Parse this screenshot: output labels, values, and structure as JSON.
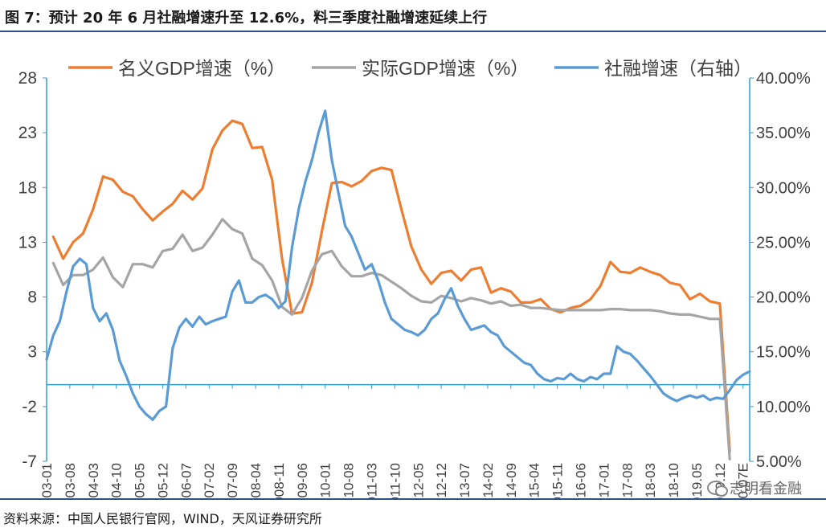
{
  "header": {
    "title": "图 7：预计 20 年 6 月社融增速升至 12.6%，料三季度社融增速延续上行"
  },
  "footer": {
    "source": "资料来源：中国人民银行官网，WIND，天风证券研究所"
  },
  "watermark": {
    "text": "志明看金融"
  },
  "colors": {
    "nominal": "#ed7d31",
    "real": "#a5a5a5",
    "tsf": "#5b9bd5",
    "axis_right": "#2e9fd6",
    "frame": "#2f4f8f"
  },
  "chart_data": {
    "type": "line",
    "xlabel": "",
    "ylabel": "",
    "x_ticks": [
      "2003-01",
      "2003-08",
      "2004-03",
      "2004-10",
      "2005-05",
      "2005-12",
      "2006-07",
      "2007-02",
      "2007-09",
      "2008-04",
      "2008-11",
      "2009-06",
      "2010-01",
      "2010-08",
      "2011-03",
      "2011-10",
      "2012-05",
      "2012-12",
      "2013-07",
      "2014-02",
      "2014-09",
      "2015-04",
      "2015-11",
      "2016-06",
      "2017-01",
      "2017-08",
      "2018-03",
      "2018-10",
      "2019.05",
      "2019.12",
      "2020.07E"
    ],
    "x_range": [
      "2003-01",
      "2020-09"
    ],
    "ylim_left": [
      -7,
      28
    ],
    "yticks_left": [
      28,
      23,
      18,
      13,
      8,
      3,
      -2,
      -7
    ],
    "ylim_right": [
      0.05,
      0.4
    ],
    "yticks_right": [
      "40.00%",
      "35.00%",
      "30.00%",
      "25.00%",
      "20.00%",
      "15.00%",
      "10.00%",
      "5.00%"
    ],
    "grid": false,
    "legend_position": "top",
    "series": [
      {
        "name": "名义GDP增速（%）",
        "axis": "left",
        "x": [
          "2003-03",
          "2003-06",
          "2003-09",
          "2003-12",
          "2004-03",
          "2004-06",
          "2004-09",
          "2004-12",
          "2005-03",
          "2005-06",
          "2005-09",
          "2005-12",
          "2006-03",
          "2006-06",
          "2006-09",
          "2006-12",
          "2007-03",
          "2007-06",
          "2007-09",
          "2007-12",
          "2008-03",
          "2008-06",
          "2008-09",
          "2008-12",
          "2009-03",
          "2009-06",
          "2009-09",
          "2009-12",
          "2010-03",
          "2010-06",
          "2010-09",
          "2010-12",
          "2011-03",
          "2011-06",
          "2011-09",
          "2011-12",
          "2012-03",
          "2012-06",
          "2012-09",
          "2012-12",
          "2013-03",
          "2013-06",
          "2013-09",
          "2013-12",
          "2014-03",
          "2014-06",
          "2014-09",
          "2014-12",
          "2015-03",
          "2015-06",
          "2015-09",
          "2015-12",
          "2016-03",
          "2016-06",
          "2016-09",
          "2016-12",
          "2017-03",
          "2017-06",
          "2017-09",
          "2017-12",
          "2018-03",
          "2018-06",
          "2018-09",
          "2018-12",
          "2019-03",
          "2019-06",
          "2019-09",
          "2019-12",
          "2020-03"
        ],
        "values": [
          13.5,
          11.5,
          13,
          13.8,
          16,
          19,
          18.7,
          17.6,
          17.2,
          16,
          15,
          15.8,
          16.5,
          17.7,
          16.9,
          17.9,
          21.5,
          23.2,
          24.1,
          23.8,
          21.6,
          21.7,
          18.7,
          11.5,
          6.5,
          6.6,
          9.3,
          14,
          18.4,
          18.5,
          18.1,
          18.6,
          19.5,
          19.8,
          19.6,
          16,
          12.6,
          10.5,
          9.2,
          10.2,
          10.4,
          9.5,
          10.5,
          10.7,
          8.4,
          8.8,
          8.5,
          7.5,
          7.5,
          7.8,
          6.9,
          6.6,
          7.0,
          7.2,
          7.8,
          9.0,
          11.2,
          10.3,
          10.2,
          10.7,
          10.3,
          10.0,
          9.3,
          9.1,
          7.8,
          8.3,
          7.6,
          7.4,
          -6.1
        ]
      },
      {
        "name": "实际GDP增速（%）",
        "axis": "left",
        "x": [
          "2003-03",
          "2003-06",
          "2003-09",
          "2003-12",
          "2004-03",
          "2004-06",
          "2004-09",
          "2004-12",
          "2005-03",
          "2005-06",
          "2005-09",
          "2005-12",
          "2006-03",
          "2006-06",
          "2006-09",
          "2006-12",
          "2007-03",
          "2007-06",
          "2007-09",
          "2007-12",
          "2008-03",
          "2008-06",
          "2008-09",
          "2008-12",
          "2009-03",
          "2009-06",
          "2009-09",
          "2009-12",
          "2010-03",
          "2010-06",
          "2010-09",
          "2010-12",
          "2011-03",
          "2011-06",
          "2011-09",
          "2011-12",
          "2012-03",
          "2012-06",
          "2012-09",
          "2012-12",
          "2013-03",
          "2013-06",
          "2013-09",
          "2013-12",
          "2014-03",
          "2014-06",
          "2014-09",
          "2014-12",
          "2015-03",
          "2015-06",
          "2015-09",
          "2015-12",
          "2016-03",
          "2016-06",
          "2016-09",
          "2016-12",
          "2017-03",
          "2017-06",
          "2017-09",
          "2017-12",
          "2018-03",
          "2018-06",
          "2018-09",
          "2018-12",
          "2019-03",
          "2019-06",
          "2019-09",
          "2019-12",
          "2020-03"
        ],
        "values": [
          11.1,
          9.1,
          10,
          10,
          10.5,
          11.6,
          9.8,
          8.9,
          11,
          11,
          10.7,
          12.2,
          12.4,
          13.7,
          12.2,
          12.5,
          13.7,
          15.1,
          14.2,
          13.8,
          11.5,
          10.9,
          9.5,
          7.1,
          6.4,
          7.9,
          10.4,
          11.9,
          12.2,
          10.8,
          9.9,
          9.9,
          10.2,
          10,
          9.4,
          8.8,
          8.1,
          7.6,
          7.5,
          8.1,
          7.9,
          7.6,
          7.9,
          7.7,
          7.4,
          7.6,
          7.2,
          7.3,
          7.0,
          7.0,
          6.9,
          6.8,
          6.8,
          6.8,
          6.8,
          6.8,
          6.9,
          6.9,
          6.8,
          6.8,
          6.8,
          6.7,
          6.5,
          6.4,
          6.4,
          6.2,
          6.0,
          6.0,
          -6.8
        ]
      },
      {
        "name": "社融增速（右轴）",
        "axis": "right",
        "format": "percent",
        "x": [
          "2003-01",
          "2003-03",
          "2003-05",
          "2003-07",
          "2003-09",
          "2003-11",
          "2004-01",
          "2004-03",
          "2004-05",
          "2004-07",
          "2004-09",
          "2004-11",
          "2005-01",
          "2005-03",
          "2005-05",
          "2005-07",
          "2005-09",
          "2005-11",
          "2006-01",
          "2006-03",
          "2006-05",
          "2006-07",
          "2006-09",
          "2006-11",
          "2007-01",
          "2007-03",
          "2007-05",
          "2007-07",
          "2007-09",
          "2007-11",
          "2008-01",
          "2008-03",
          "2008-05",
          "2008-07",
          "2008-09",
          "2008-11",
          "2009-01",
          "2009-03",
          "2009-05",
          "2009-07",
          "2009-09",
          "2009-11",
          "2010-01",
          "2010-03",
          "2010-05",
          "2010-07",
          "2010-09",
          "2010-11",
          "2011-01",
          "2011-03",
          "2011-05",
          "2011-07",
          "2011-09",
          "2011-11",
          "2012-01",
          "2012-03",
          "2012-05",
          "2012-07",
          "2012-09",
          "2012-11",
          "2013-01",
          "2013-03",
          "2013-05",
          "2013-07",
          "2013-09",
          "2013-11",
          "2014-01",
          "2014-03",
          "2014-05",
          "2014-07",
          "2014-09",
          "2014-11",
          "2015-01",
          "2015-03",
          "2015-05",
          "2015-07",
          "2015-09",
          "2015-11",
          "2016-01",
          "2016-03",
          "2016-05",
          "2016-07",
          "2016-09",
          "2016-11",
          "2017-01",
          "2017-03",
          "2017-05",
          "2017-07",
          "2017-09",
          "2017-11",
          "2018-01",
          "2018-03",
          "2018-05",
          "2018-07",
          "2018-09",
          "2018-11",
          "2019-01",
          "2019-03",
          "2019-05",
          "2019-07",
          "2019-09",
          "2019-11",
          "2020-01",
          "2020-03",
          "2020-05",
          "2020-07",
          "2020-09"
        ],
        "values": [
          0.143,
          0.165,
          0.178,
          0.205,
          0.228,
          0.235,
          0.23,
          0.19,
          0.178,
          0.185,
          0.17,
          0.142,
          0.128,
          0.112,
          0.1,
          0.093,
          0.088,
          0.096,
          0.1,
          0.153,
          0.172,
          0.18,
          0.173,
          0.182,
          0.175,
          0.178,
          0.18,
          0.182,
          0.205,
          0.215,
          0.195,
          0.195,
          0.2,
          0.202,
          0.198,
          0.19,
          0.196,
          0.245,
          0.28,
          0.305,
          0.325,
          0.35,
          0.37,
          0.325,
          0.295,
          0.265,
          0.255,
          0.24,
          0.225,
          0.23,
          0.215,
          0.195,
          0.18,
          0.175,
          0.17,
          0.168,
          0.165,
          0.17,
          0.18,
          0.185,
          0.198,
          0.208,
          0.192,
          0.18,
          0.17,
          0.172,
          0.174,
          0.168,
          0.165,
          0.155,
          0.15,
          0.145,
          0.14,
          0.138,
          0.13,
          0.125,
          0.123,
          0.126,
          0.125,
          0.13,
          0.125,
          0.123,
          0.127,
          0.125,
          0.13,
          0.13,
          0.155,
          0.15,
          0.148,
          0.142,
          0.135,
          0.128,
          0.12,
          0.112,
          0.108,
          0.105,
          0.108,
          0.11,
          0.108,
          0.11,
          0.106,
          0.108,
          0.107,
          0.115,
          0.124,
          0.129,
          0.132
        ]
      }
    ]
  }
}
